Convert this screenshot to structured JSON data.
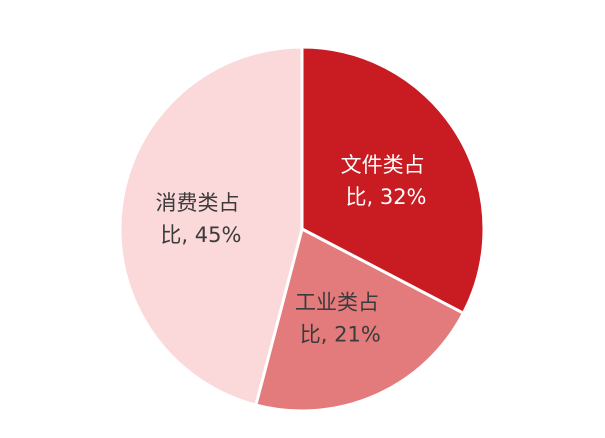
{
  "chart_data": {
    "type": "pie",
    "categories": [
      "文件类占",
      "工业类占",
      "消费类占"
    ],
    "values": [
      32,
      21,
      45
    ],
    "labels": [
      {
        "line1": "文件类占",
        "line2": "比, 32%"
      },
      {
        "line1": "工业类占",
        "line2": "比, 21%"
      },
      {
        "line1": "消费类占",
        "line2": "比, 45%"
      }
    ],
    "colors": [
      "#c81b22",
      "#e37a7b",
      "#fbd8da"
    ],
    "label_colors": [
      "#ffffff",
      "#3b3b3b",
      "#3b3b3b"
    ],
    "start_angle_deg": 0,
    "direction": "clockwise",
    "legend": "none"
  }
}
